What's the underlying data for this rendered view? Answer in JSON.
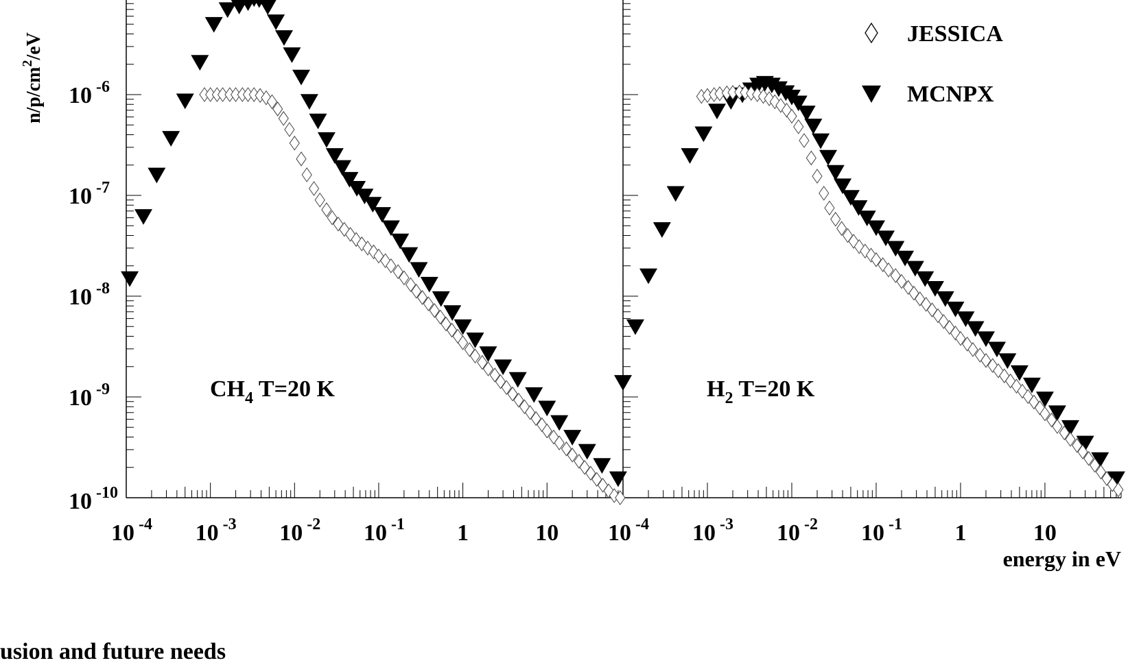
{
  "chart_data": {
    "type": "scatter",
    "ylabel_main": "n/p/cm",
    "ylabel_sup": "2",
    "ylabel_tail": "/eV",
    "xlabel": "energy in eV",
    "x_scale": "log",
    "y_scale": "log",
    "xlim": [
      0.0001,
      80
    ],
    "ylim": [
      1e-10,
      1e-05
    ],
    "x_tick_labels": [
      {
        "value": 0.0001,
        "base": "10",
        "exp": "-4"
      },
      {
        "value": 0.001,
        "base": "10",
        "exp": "-3"
      },
      {
        "value": 0.01,
        "base": "10",
        "exp": "-2"
      },
      {
        "value": 0.1,
        "base": "10",
        "exp": "-1"
      },
      {
        "value": 1,
        "base": "1",
        "exp": ""
      },
      {
        "value": 10,
        "base": "10",
        "exp": ""
      }
    ],
    "y_tick_labels": [
      {
        "value": 1e-06,
        "base": "10",
        "exp": "-6"
      },
      {
        "value": 1e-07,
        "base": "10",
        "exp": "-7"
      },
      {
        "value": 1e-08,
        "base": "10",
        "exp": "-8"
      },
      {
        "value": 1e-09,
        "base": "10",
        "exp": "-9"
      },
      {
        "value": 1e-10,
        "base": "10",
        "exp": "-10"
      }
    ],
    "legend": [
      {
        "name": "JESSICA",
        "marker": "open-diamond"
      },
      {
        "name": "MCNPX",
        "marker": "filled-triangle-down"
      }
    ],
    "legend_position": "top-right",
    "panels": [
      {
        "id": "ch4",
        "annotation_main": "CH",
        "annotation_sub": "4",
        "annotation_tail": " T=20 K",
        "series": [
          {
            "name": "MCNPX",
            "marker": "filled-triangle-down",
            "x": [
              0.00011,
              0.00016,
              0.00023,
              0.00034,
              0.0005,
              0.00075,
              0.0011,
              0.0016,
              0.0022,
              0.0028,
              0.0033,
              0.0038,
              0.0048,
              0.006,
              0.0075,
              0.0093,
              0.012,
              0.015,
              0.019,
              0.024,
              0.03,
              0.037,
              0.045,
              0.055,
              0.068,
              0.085,
              0.11,
              0.14,
              0.18,
              0.23,
              0.3,
              0.4,
              0.55,
              0.75,
              1.0,
              1.4,
              2.0,
              3.0,
              4.5,
              7.0,
              10.0,
              14.0,
              20.0,
              30.0,
              45.0,
              70.0
            ],
            "y": [
              1.5e-08,
              6.2e-08,
              1.6e-07,
              3.7e-07,
              8.7e-07,
              2.1e-06,
              5e-06,
              7e-06,
              7.6e-06,
              8.2e-06,
              9e-06,
              8.8e-06,
              7.5e-06,
              5.3e-06,
              3.7e-06,
              2.5e-06,
              1.5e-06,
              8.6e-07,
              5.5e-07,
              3.6e-07,
              2.5e-07,
              1.9e-07,
              1.45e-07,
              1.18e-07,
              9.9e-08,
              8.2e-08,
              6.5e-08,
              4.8e-08,
              3.55e-08,
              2.6e-08,
              1.85e-08,
              1.32e-08,
              9.5e-09,
              6.9e-09,
              5e-09,
              3.7e-09,
              2.7e-09,
              2e-09,
              1.5e-09,
              1.06e-09,
              7.8e-10,
              5.6e-10,
              4e-10,
              2.9e-10,
              2.1e-10,
              1.55e-10
            ]
          },
          {
            "name": "JESSICA",
            "marker": "open-diamond",
            "x": [
              0.00085,
              0.001,
              0.0012,
              0.0014,
              0.0017,
              0.002,
              0.0024,
              0.0028,
              0.0033,
              0.0039,
              0.0046,
              0.0054,
              0.0063,
              0.0074,
              0.0087,
              0.01,
              0.012,
              0.014,
              0.017,
              0.02,
              0.024,
              0.028,
              0.033,
              0.039,
              0.046,
              0.054,
              0.063,
              0.074,
              0.087,
              0.1,
              0.12,
              0.14,
              0.17,
              0.2,
              0.24,
              0.28,
              0.33,
              0.39,
              0.46,
              0.54,
              0.63,
              0.74,
              0.87,
              1.0,
              1.2,
              1.4,
              1.7,
              2.0,
              2.4,
              2.8,
              3.3,
              3.9,
              4.6,
              5.4,
              6.3,
              7.4,
              8.7,
              10.0,
              12.0,
              14.0,
              17.0,
              20.0,
              24.0,
              28.0,
              33.0,
              39.0,
              46.0,
              54.0,
              63.0,
              74.0
            ],
            "y": [
              1e-06,
              1e-06,
              1e-06,
              1e-06,
              1e-06,
              1e-06,
              1e-06,
              1e-06,
              1e-06,
              9.8e-07,
              9.3e-07,
              8.5e-07,
              7.2e-07,
              5.8e-07,
              4.5e-07,
              3.3e-07,
              2.3e-07,
              1.6e-07,
              1.17e-07,
              9e-08,
              7.2e-08,
              6e-08,
              5.2e-08,
              4.6e-08,
              4.1e-08,
              3.65e-08,
              3.3e-08,
              3e-08,
              2.75e-08,
              2.5e-08,
              2.25e-08,
              2e-08,
              1.75e-08,
              1.52e-08,
              1.3e-08,
              1.12e-08,
              9.7e-09,
              8.4e-09,
              7.2e-09,
              6.2e-09,
              5.3e-09,
              4.6e-09,
              4e-09,
              3.45e-09,
              2.95e-09,
              2.55e-09,
              2.2e-09,
              1.9e-09,
              1.65e-09,
              1.42e-09,
              1.24e-09,
              1.07e-09,
              9.3e-10,
              8e-10,
              7e-10,
              6.1e-10,
              5.3e-10,
              4.6e-10,
              4e-10,
              3.5e-10,
              3.05e-10,
              2.65e-10,
              2.3e-10,
              2e-10,
              1.75e-10,
              1.52e-10,
              1.33e-10,
              1.17e-10,
              1.05e-10,
              1e-10
            ]
          }
        ]
      },
      {
        "id": "h2",
        "annotation_main": "H",
        "annotation_sub": "2",
        "annotation_tail": " T=20 K",
        "series": [
          {
            "name": "MCNPX",
            "marker": "filled-triangle-down",
            "x": [
              0.0001,
              0.00014,
              0.0002,
              0.00029,
              0.00042,
              0.00062,
              0.0009,
              0.0013,
              0.0019,
              0.0026,
              0.0033,
              0.004,
              0.0048,
              0.0058,
              0.007,
              0.0085,
              0.01,
              0.012,
              0.015,
              0.018,
              0.022,
              0.027,
              0.033,
              0.04,
              0.05,
              0.062,
              0.078,
              0.1,
              0.13,
              0.17,
              0.22,
              0.29,
              0.38,
              0.5,
              0.66,
              0.87,
              1.15,
              1.5,
              2.0,
              2.7,
              3.6,
              5.0,
              7.0,
              10.0,
              14.0,
              20.0,
              30.0,
              45.0,
              70.0
            ],
            "y": [
              1.4e-09,
              5e-09,
              1.6e-08,
              4.6e-08,
              1.05e-07,
              2.5e-07,
              4.1e-07,
              6.9e-07,
              8.6e-07,
              1e-06,
              1.12e-06,
              1.25e-06,
              1.3e-06,
              1.25e-06,
              1.15e-06,
              1.05e-06,
              9.5e-07,
              8.3e-07,
              6.6e-07,
              4.9e-07,
              3.5e-07,
              2.4e-07,
              1.7e-07,
              1.25e-07,
              9.6e-08,
              7.6e-08,
              6e-08,
              4.8e-08,
              3.8e-08,
              3e-08,
              2.4e-08,
              1.9e-08,
              1.5e-08,
              1.2e-08,
              9.5e-09,
              7.5e-09,
              6e-09,
              4.8e-09,
              3.8e-09,
              3e-09,
              2.3e-09,
              1.75e-09,
              1.32e-09,
              9.6e-10,
              7e-10,
              5e-10,
              3.5e-10,
              2.4e-10,
              1.55e-10
            ]
          },
          {
            "name": "JESSICA",
            "marker": "open-diamond",
            "x": [
              0.00085,
              0.001,
              0.0012,
              0.0014,
              0.0017,
              0.002,
              0.0024,
              0.0028,
              0.0033,
              0.0039,
              0.0046,
              0.0054,
              0.0063,
              0.0074,
              0.0087,
              0.01,
              0.012,
              0.014,
              0.017,
              0.02,
              0.024,
              0.028,
              0.033,
              0.039,
              0.046,
              0.054,
              0.063,
              0.074,
              0.087,
              0.1,
              0.12,
              0.14,
              0.17,
              0.2,
              0.24,
              0.28,
              0.33,
              0.39,
              0.46,
              0.54,
              0.63,
              0.74,
              0.87,
              1.0,
              1.2,
              1.4,
              1.7,
              2.0,
              2.4,
              2.8,
              3.3,
              3.9,
              4.6,
              5.4,
              6.3,
              7.4,
              8.7,
              10.0,
              12.0,
              14.0,
              17.0,
              20.0,
              24.0,
              28.0,
              33.0,
              39.0,
              46.0,
              54.0,
              63.0,
              74.0
            ],
            "y": [
              9.6e-07,
              9.8e-07,
              1e-06,
              1.02e-06,
              1.04e-06,
              1.05e-06,
              1.06e-06,
              1.05e-06,
              1.03e-06,
              1e-06,
              9.6e-07,
              9.1e-07,
              8.5e-07,
              7.8e-07,
              7e-07,
              6.1e-07,
              4.8e-07,
              3.5e-07,
              2.35e-07,
              1.55e-07,
              1.05e-07,
              7.5e-08,
              5.8e-08,
              4.7e-08,
              4e-08,
              3.5e-08,
              3.1e-08,
              2.8e-08,
              2.55e-08,
              2.3e-08,
              2.05e-08,
              1.82e-08,
              1.6e-08,
              1.4e-08,
              1.22e-08,
              1.07e-08,
              9.4e-09,
              8.3e-09,
              7.3e-09,
              6.4e-09,
              5.6e-09,
              4.9e-09,
              4.3e-09,
              3.8e-09,
              3.35e-09,
              2.95e-09,
              2.6e-09,
              2.3e-09,
              2.05e-09,
              1.82e-09,
              1.62e-09,
              1.44e-09,
              1.28e-09,
              1.14e-09,
              1.01e-09,
              8.9e-10,
              7.8e-10,
              6.8e-10,
              5.9e-10,
              5.1e-10,
              4.4e-10,
              3.8e-10,
              3.3e-10,
              2.85e-10,
              2.45e-10,
              2.1e-10,
              1.8e-10,
              1.55e-10,
              1.35e-10,
              1.2e-10
            ]
          }
        ]
      }
    ]
  },
  "footer": {
    "text": "usion and future needs"
  }
}
